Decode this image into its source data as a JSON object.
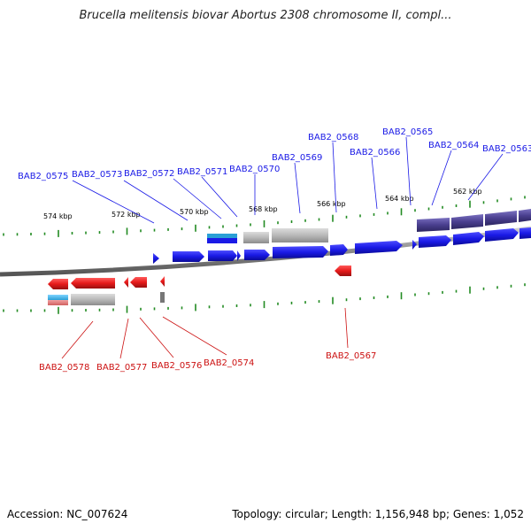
{
  "title": "Brucella melitensis biovar Abortus 2308 chromosome II, compl...",
  "footer": {
    "accession_label": "Accession:",
    "accession": "NC_007624",
    "topology_label": "Topology:",
    "topology": "circular",
    "length_label": "Length:",
    "length": "1,156,948 bp",
    "genes_label": "Genes:",
    "genes": "1,052"
  },
  "scale_labels": [
    "574 kbp",
    "572 kbp",
    "570 kbp",
    "568 kbp",
    "566 kbp",
    "564 kbp",
    "562 kbp"
  ],
  "forward_gene_labels": [
    "BAB2_0575",
    "BAB2_0573",
    "BAB2_0572",
    "BAB2_0571",
    "BAB2_0570",
    "BAB2_0569",
    "BAB2_0568",
    "BAB2_0566",
    "BAB2_0565",
    "BAB2_0564",
    "BAB2_0563"
  ],
  "reverse_gene_labels": [
    "BAB2_0578",
    "BAB2_0577",
    "BAB2_0576",
    "BAB2_0574",
    "BAB2_0567"
  ],
  "colors": {
    "forward": "#1a1ae6",
    "reverse": "#e61a1a",
    "forward_label": "#1a1ae6",
    "reverse_label": "#cc1111",
    "tick": "#228b22",
    "backbone": "#888888",
    "feature_gray": "#b8b8b8",
    "feature_purple": "#4a3f8f"
  }
}
